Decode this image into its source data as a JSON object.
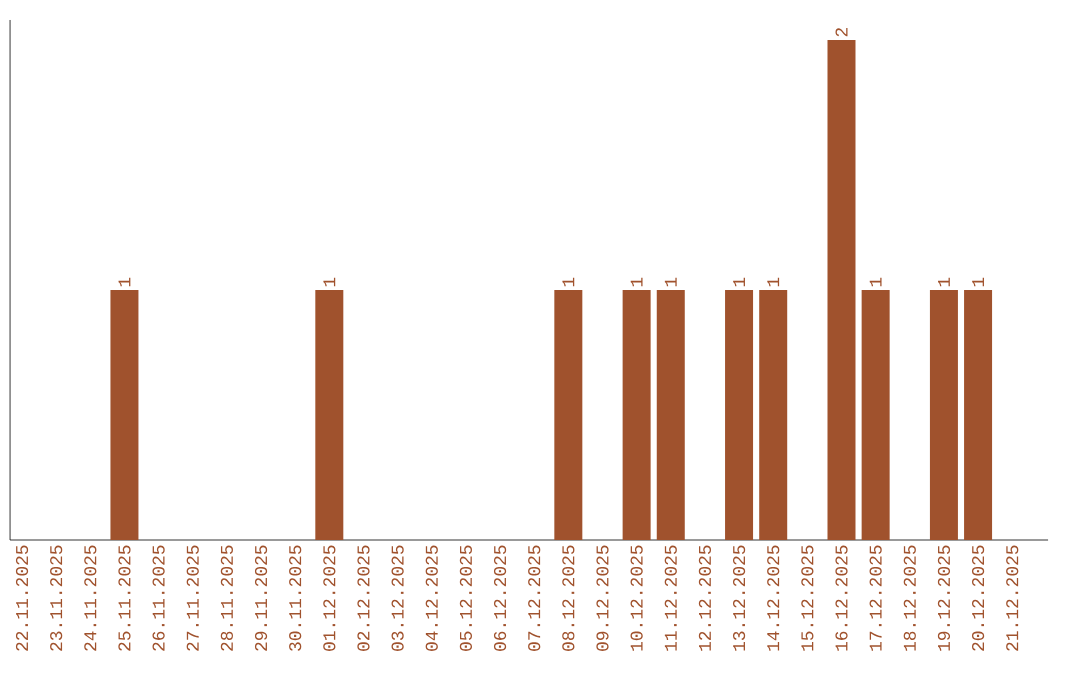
{
  "chart_data": {
    "type": "bar",
    "categories": [
      "22.11.2025",
      "23.11.2025",
      "24.11.2025",
      "25.11.2025",
      "26.11.2025",
      "27.11.2025",
      "28.11.2025",
      "29.11.2025",
      "30.11.2025",
      "01.12.2025",
      "02.12.2025",
      "03.12.2025",
      "04.12.2025",
      "05.12.2025",
      "06.12.2025",
      "07.12.2025",
      "08.12.2025",
      "09.12.2025",
      "10.12.2025",
      "11.12.2025",
      "12.12.2025",
      "13.12.2025",
      "14.12.2025",
      "15.12.2025",
      "16.12.2025",
      "17.12.2025",
      "18.12.2025",
      "19.12.2025",
      "20.12.2025",
      "21.12.2025"
    ],
    "values": [
      0,
      0,
      0,
      1,
      0,
      0,
      0,
      0,
      0,
      1,
      0,
      0,
      0,
      0,
      0,
      0,
      1,
      0,
      1,
      1,
      0,
      1,
      1,
      0,
      2,
      1,
      0,
      1,
      1,
      0
    ],
    "value_labels": [
      null,
      null,
      null,
      "1",
      null,
      null,
      null,
      null,
      null,
      "1",
      null,
      null,
      null,
      null,
      null,
      null,
      "1",
      null,
      "1",
      "1",
      null,
      "1",
      "1",
      null,
      "2",
      "1",
      null,
      "1",
      "1",
      null
    ],
    "color": "#a0522d",
    "ylim": [
      0,
      2.08
    ],
    "tick_labels": "x"
  }
}
